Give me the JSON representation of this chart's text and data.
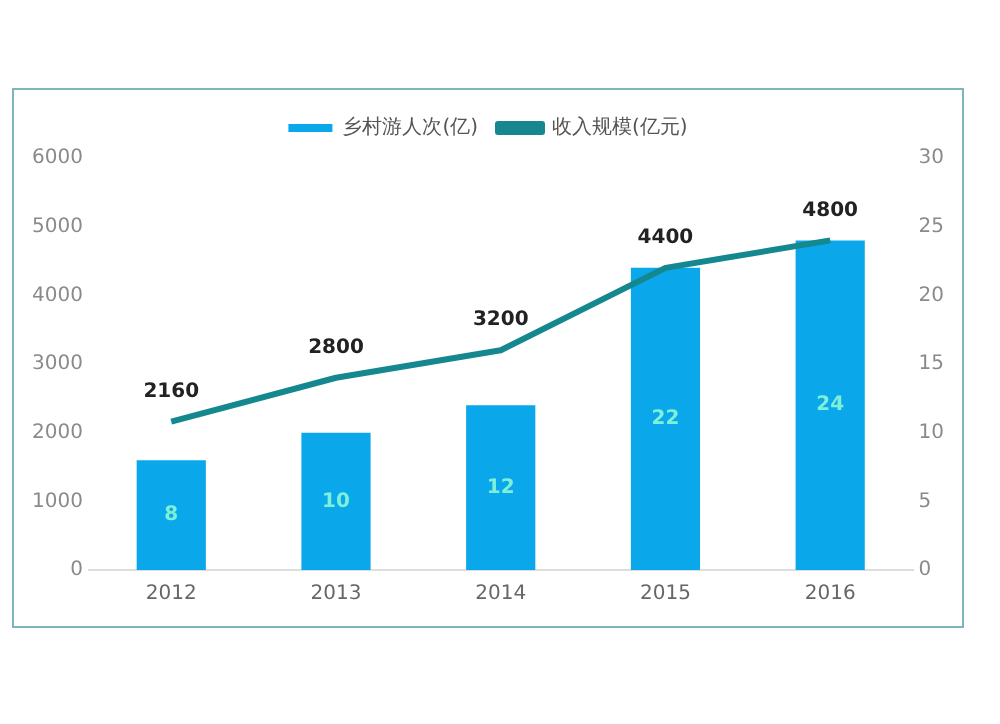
{
  "chart_data": {
    "type": "bar",
    "categories": [
      "2012",
      "2013",
      "2014",
      "2015",
      "2016"
    ],
    "series": [
      {
        "name": "乡村游人次(亿)",
        "axis": "y2",
        "color": "#0aa8ea",
        "values": [
          8,
          10,
          12,
          22,
          24
        ]
      },
      {
        "name": "收入规模(亿元)",
        "type": "line",
        "axis": "y",
        "color": "#14878f",
        "values": [
          2160,
          2800,
          3200,
          4400,
          4800
        ]
      }
    ],
    "ylim": [
      0,
      6000
    ],
    "yticks": [
      0,
      1000,
      2000,
      3000,
      4000,
      5000,
      6000
    ],
    "y2lim": [
      0,
      30
    ],
    "y2ticks": [
      0,
      5,
      10,
      15,
      20,
      25,
      30
    ],
    "data_labels": true,
    "legend": "top",
    "grid": false,
    "marker": "none"
  }
}
